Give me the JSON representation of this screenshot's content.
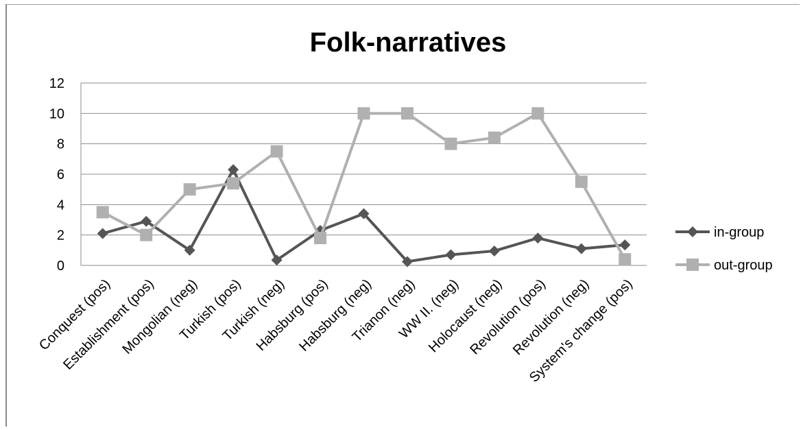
{
  "chart_data": {
    "type": "line",
    "title": "Folk-narratives",
    "xlabel": "",
    "ylabel": "",
    "ylim": [
      0,
      12
    ],
    "yticks": [
      0,
      2,
      4,
      6,
      8,
      10,
      12
    ],
    "grid": true,
    "legend_position": "right",
    "categories": [
      "Conquest (pos)",
      "Establishment (pos)",
      "Mongolian (neg)",
      "Turkish (pos)",
      "Turkish (neg)",
      "Habsburg (pos)",
      "Habsburg (neg)",
      "Trianon (neg)",
      "WW II. (neg)",
      "Holocaust (neg)",
      "Revolution (pos)",
      "Revolution (neg)",
      "System's change (pos)"
    ],
    "series": [
      {
        "name": "in-group",
        "color": "#555555",
        "marker": "diamond",
        "values": [
          2.1,
          2.9,
          1.0,
          6.3,
          0.35,
          2.3,
          3.4,
          0.25,
          0.7,
          0.95,
          1.8,
          1.1,
          1.35
        ]
      },
      {
        "name": "out-group",
        "color": "#b0b0b0",
        "marker": "square",
        "values": [
          3.5,
          2.0,
          5.0,
          5.4,
          7.5,
          1.8,
          10.0,
          10.0,
          8.0,
          8.4,
          10.0,
          5.5,
          0.4
        ]
      }
    ]
  }
}
